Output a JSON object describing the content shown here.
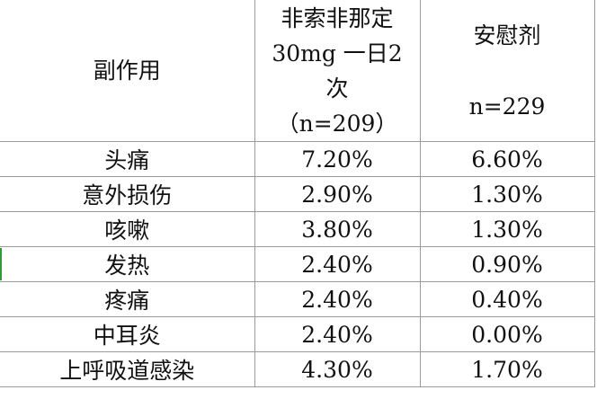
{
  "table": {
    "header": [
      [
        "副作用"
      ],
      [
        "非索非那定",
        "30mg 一日2",
        "次",
        "（n=209）"
      ],
      [
        "安慰剂",
        "n=229"
      ]
    ],
    "rows": [
      [
        "头痛",
        "7.20%",
        "6.60%"
      ],
      [
        "意外损伤",
        "2.90%",
        "1.30%"
      ],
      [
        "咳嗽",
        "3.80%",
        "1.30%"
      ],
      [
        "发热",
        "2.40%",
        "0.90%"
      ],
      [
        "疼痛",
        "2.40%",
        "0.40%"
      ],
      [
        "中耳炎",
        "2.40%",
        "0.00%"
      ],
      [
        "上呼吸道感染",
        "4.30%",
        "1.70%"
      ]
    ]
  }
}
